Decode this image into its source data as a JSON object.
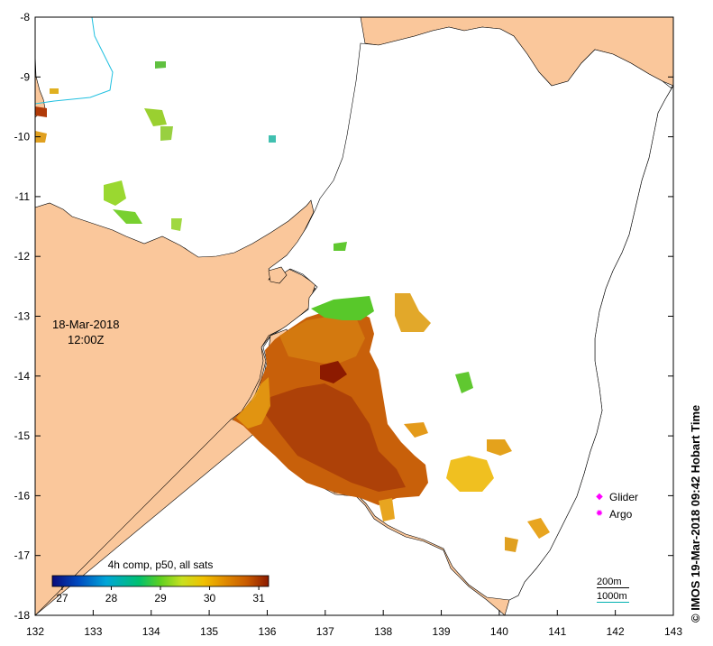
{
  "map": {
    "x_axis_ticks": [
      "132",
      "133",
      "134",
      "135",
      "136",
      "137",
      "138",
      "139",
      "140",
      "141",
      "142",
      "143"
    ],
    "y_axis_ticks": [
      "-8",
      "-9",
      "-10",
      "-11",
      "-12",
      "-13",
      "-14",
      "-15",
      "-16",
      "-17",
      "-18"
    ],
    "land_color": "#fac79b",
    "sea_color": "#ffffff"
  },
  "timestamp": {
    "date": "18-Mar-2018",
    "time": "12:00Z"
  },
  "colorbar": {
    "title": "4h comp, p50, all sats",
    "ticks": [
      "27",
      "28",
      "29",
      "30",
      "31"
    ],
    "min": 26.8,
    "max": 31.2,
    "colors": [
      "#0b0b7a",
      "#004ac0",
      "#00a6d8",
      "#00c070",
      "#5fd020",
      "#c8e020",
      "#f0c000",
      "#e08a00",
      "#c85a00",
      "#8c1a00"
    ]
  },
  "legend": {
    "items": [
      {
        "label": "Glider",
        "symbol": "◆"
      },
      {
        "label": "Argo",
        "symbol": "✹"
      }
    ]
  },
  "contours": {
    "labels": [
      "200m",
      "1000m"
    ]
  },
  "credit": "© IMOS 19-Mar-2018 09:42 Hobart Time"
}
